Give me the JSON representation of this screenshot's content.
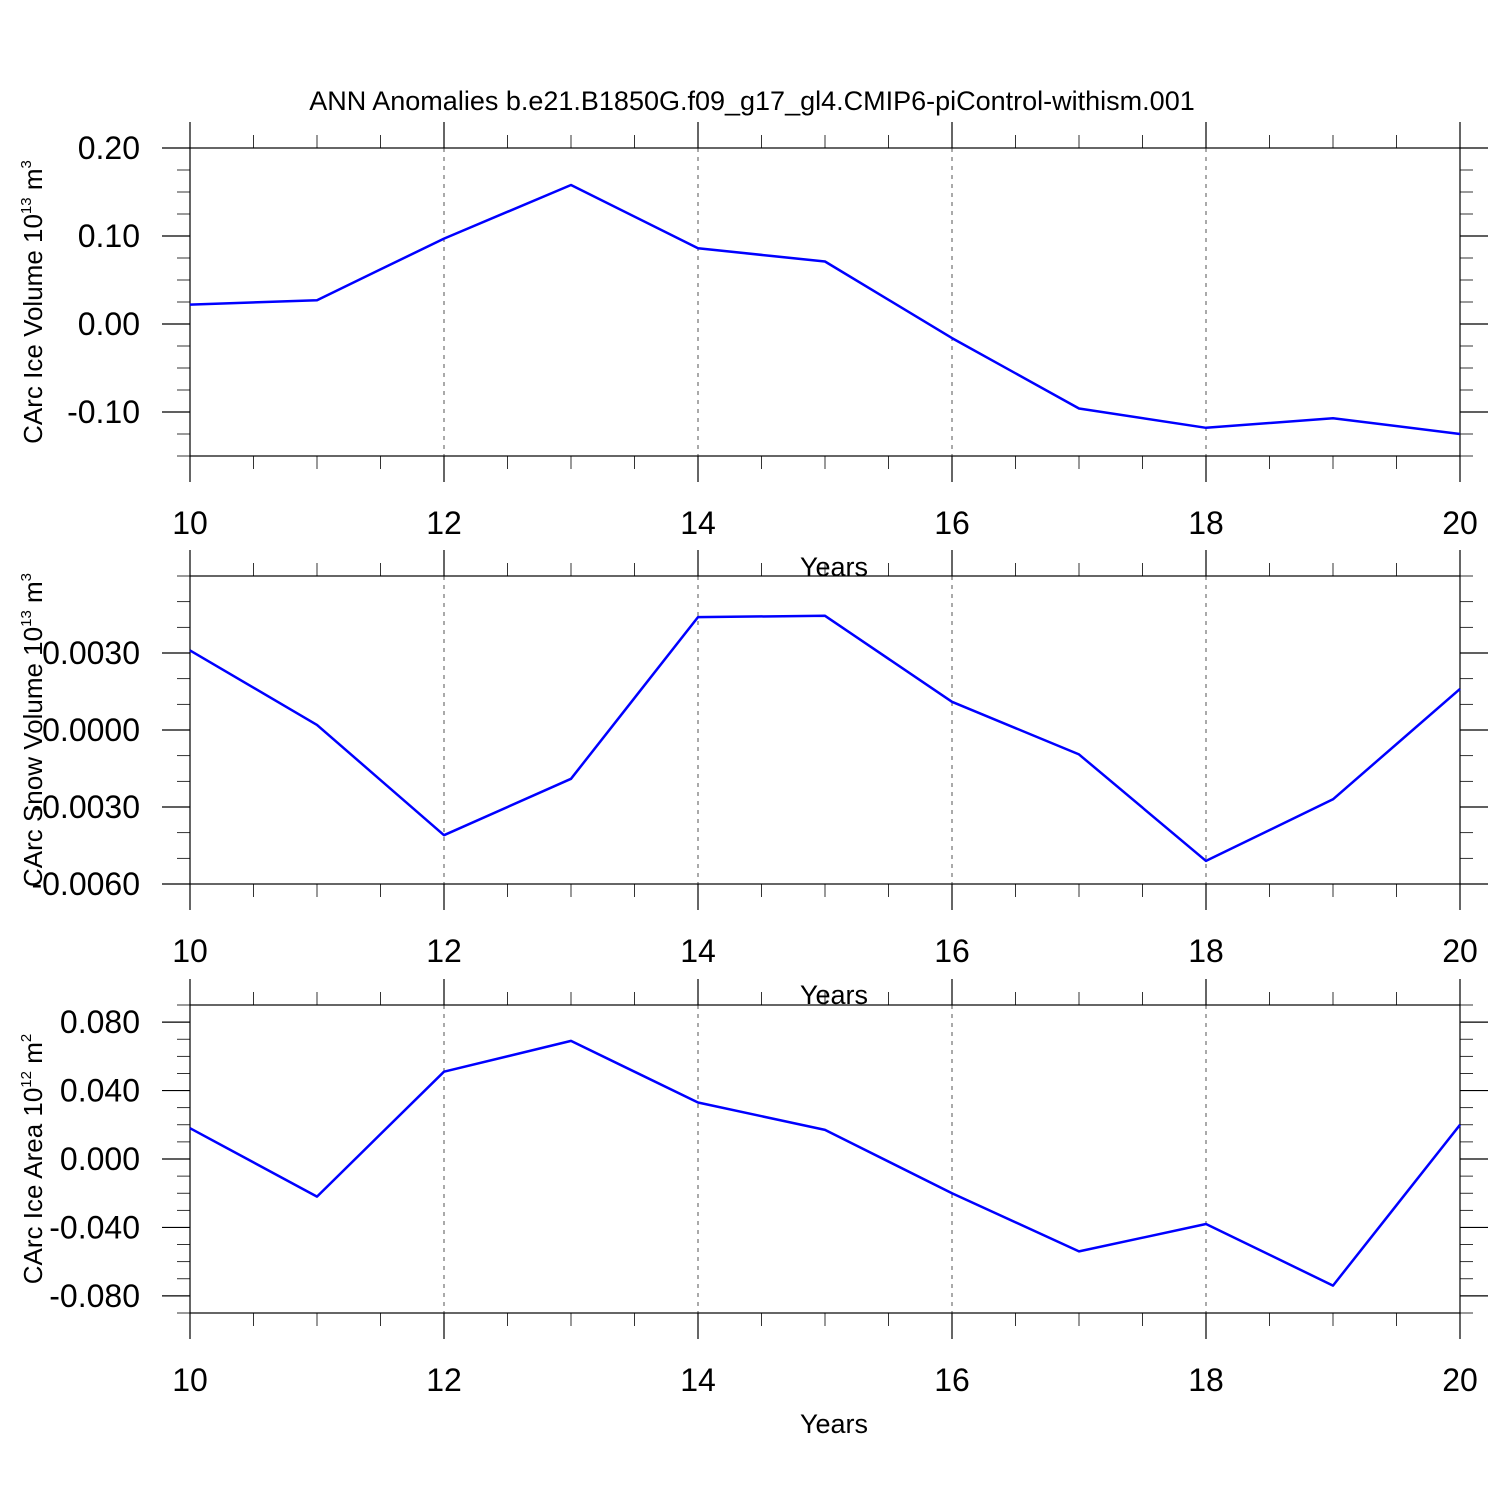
{
  "figure": {
    "title": "ANN Anomalies b.e21.B1850G.f09_g17_gl4.CMIP6-piControl-withism.001"
  },
  "chart_data": [
    {
      "type": "line",
      "xlabel": "Years",
      "ylabel": {
        "prefix": "CArc Ice Volume 10",
        "exp": "13",
        "unit": " m",
        "unit_exp": "3"
      },
      "xlim": [
        10,
        20
      ],
      "ylim": [
        -0.15,
        0.2
      ],
      "xticks": [
        10,
        12,
        14,
        16,
        18,
        20
      ],
      "xtick_labels": [
        "10",
        "12",
        "14",
        "16",
        "18",
        "20"
      ],
      "yticks": [
        0.2,
        0.1,
        0.0,
        -0.1
      ],
      "ytick_labels": [
        "0.20",
        "0.10",
        "0.00",
        "-0.10"
      ],
      "x_minor_step": 0.5,
      "y_minor_step": 0.025,
      "grid": "vertical dashed at major x ticks",
      "color": "#0000ff",
      "x": [
        10,
        11,
        12,
        13,
        14,
        15,
        16,
        17,
        18,
        19,
        20
      ],
      "values": [
        0.022,
        0.027,
        0.097,
        0.158,
        0.086,
        0.071,
        -0.016,
        -0.096,
        -0.118,
        -0.107,
        -0.125
      ]
    },
    {
      "type": "line",
      "xlabel": "Years",
      "ylabel": {
        "prefix": "CArc Snow Volume 10",
        "exp": "13",
        "unit": " m",
        "unit_exp": "3"
      },
      "xlim": [
        10,
        20
      ],
      "ylim": [
        -0.006,
        0.006
      ],
      "xticks": [
        10,
        12,
        14,
        16,
        18,
        20
      ],
      "xtick_labels": [
        "10",
        "12",
        "14",
        "16",
        "18",
        "20"
      ],
      "yticks": [
        0.003,
        0.0,
        -0.003,
        -0.006
      ],
      "ytick_labels": [
        "0.0030",
        "0.0000",
        "-0.0030",
        "-0.0060"
      ],
      "x_minor_step": 0.5,
      "y_minor_step": 0.001,
      "grid": "vertical dashed at major x ticks",
      "color": "#0000ff",
      "x": [
        10,
        11,
        12,
        13,
        14,
        15,
        16,
        17,
        18,
        19,
        20
      ],
      "values": [
        0.0031,
        0.0002,
        -0.0041,
        -0.0019,
        0.0044,
        0.00445,
        0.0011,
        -0.00095,
        -0.0051,
        -0.0027,
        0.0016
      ]
    },
    {
      "type": "line",
      "xlabel": "Years",
      "ylabel": {
        "prefix": "CArc Ice Area 10",
        "exp": "12",
        "unit": " m",
        "unit_exp": "2"
      },
      "xlim": [
        10,
        20
      ],
      "ylim": [
        -0.09,
        0.09
      ],
      "xticks": [
        10,
        12,
        14,
        16,
        18,
        20
      ],
      "xtick_labels": [
        "10",
        "12",
        "14",
        "16",
        "18",
        "20"
      ],
      "yticks": [
        0.08,
        0.04,
        0.0,
        -0.04,
        -0.08
      ],
      "ytick_labels": [
        "0.080",
        "0.040",
        "0.000",
        "-0.040",
        "-0.080"
      ],
      "x_minor_step": 0.5,
      "y_minor_step": 0.01,
      "grid": "vertical dashed at major x ticks",
      "color": "#0000ff",
      "x": [
        10,
        11,
        12,
        13,
        14,
        15,
        16,
        17,
        18,
        19,
        20
      ],
      "values": [
        0.018,
        -0.022,
        0.051,
        0.069,
        0.033,
        0.017,
        -0.02,
        -0.054,
        -0.038,
        -0.074,
        0.02
      ]
    }
  ]
}
